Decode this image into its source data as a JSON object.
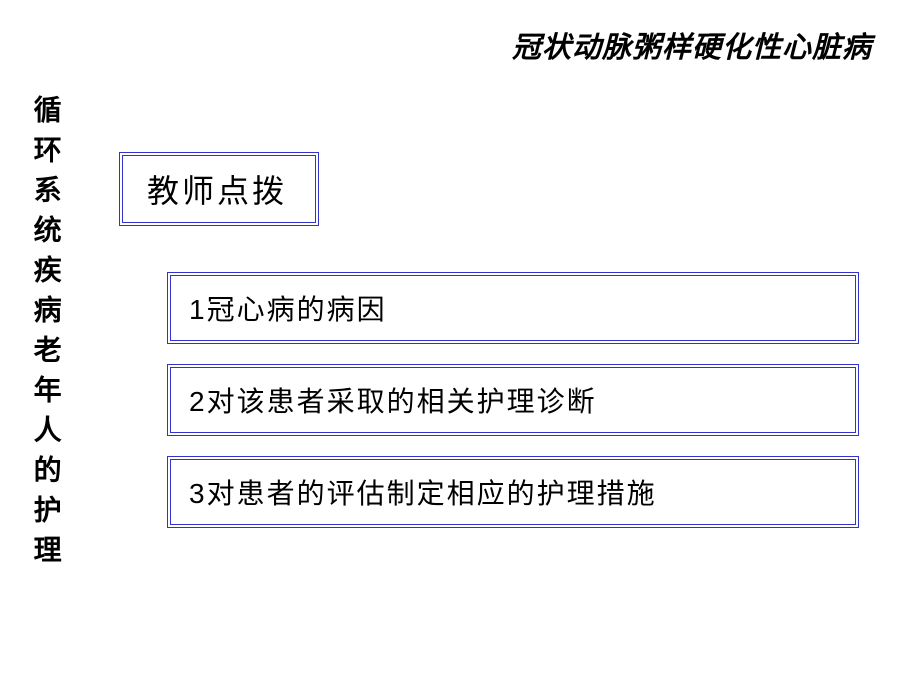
{
  "header": {
    "top_title": "冠状动脉粥样硬化性心脏病",
    "sidebar_title": "循环系统疾病老年人的护理"
  },
  "content": {
    "section_label": "教师点拨",
    "items": [
      {
        "number": "1",
        "text": "冠心病的病因"
      },
      {
        "number": "2",
        "text": "对该患者采取的相关护理诊断"
      },
      {
        "number": "3",
        "text": "对患者的评估制定相应的护理措施"
      }
    ]
  },
  "style": {
    "background_color": "#ffffff",
    "border_color": "#3333cc",
    "text_color": "#000000",
    "top_title_fontsize": 29,
    "sidebar_fontsize": 28,
    "section_header_fontsize": 32,
    "item_fontsize": 28,
    "border_style": "double",
    "border_width": 4
  }
}
